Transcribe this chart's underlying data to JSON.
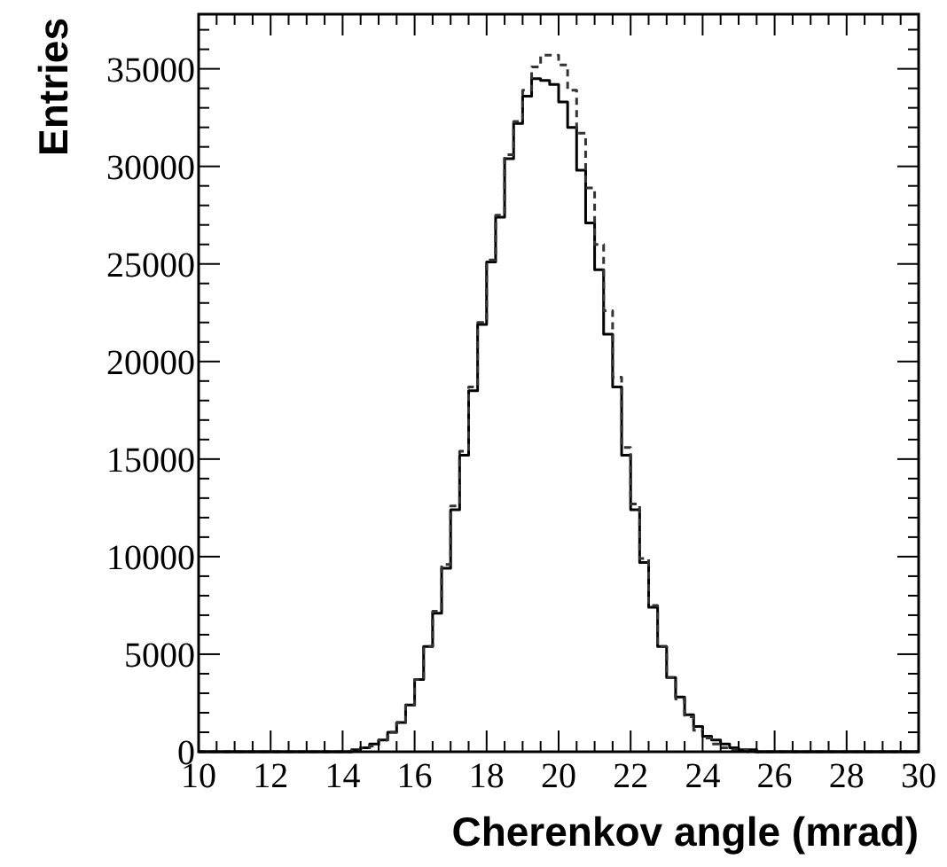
{
  "chart_data": {
    "type": "histogram",
    "xlabel": "Cherenkov angle (mrad)",
    "ylabel": "Entries",
    "bins": [
      10,
      10.25,
      10.5,
      10.75,
      11,
      11.25,
      11.5,
      11.75,
      12,
      12.25,
      12.5,
      12.75,
      13,
      13.25,
      13.5,
      13.75,
      14,
      14.25,
      14.5,
      14.75,
      15,
      15.25,
      15.5,
      15.75,
      16,
      16.25,
      16.5,
      16.75,
      17,
      17.25,
      17.5,
      17.75,
      18,
      18.25,
      18.5,
      18.75,
      19,
      19.25,
      19.5,
      19.75,
      20,
      20.25,
      20.5,
      20.75,
      21,
      21.25,
      21.5,
      21.75,
      22,
      22.25,
      22.5,
      22.75,
      23,
      23.25,
      23.5,
      23.75,
      24,
      24.25,
      24.5,
      24.75,
      25,
      25.25,
      25.5,
      25.75,
      26,
      26.25,
      26.5,
      26.75,
      27,
      27.25,
      27.5,
      27.75,
      28,
      28.25,
      28.5,
      28.75,
      29,
      29.25,
      29.5,
      29.75,
      30
    ],
    "series": [
      {
        "color": "#000000",
        "line_style": "solid",
        "values": [
          0,
          0,
          0,
          0,
          0,
          0,
          0,
          0,
          0,
          0,
          0,
          0,
          0,
          0,
          0,
          0,
          0,
          100,
          200,
          400,
          600,
          1000,
          1500,
          2400,
          3700,
          5400,
          7100,
          9400,
          12400,
          15200,
          18500,
          21900,
          25100,
          27400,
          30400,
          32200,
          33600,
          34500,
          34400,
          34200,
          33300,
          32000,
          29800,
          27100,
          24700,
          21400,
          18700,
          15200,
          12400,
          9700,
          7400,
          5400,
          3800,
          2800,
          1900,
          1300,
          800,
          600,
          400,
          200,
          100,
          100,
          0,
          0,
          0,
          0,
          0,
          0,
          0,
          0,
          0,
          0,
          0,
          0,
          0,
          0,
          0,
          0,
          0,
          0
        ]
      },
      {
        "color": "#333333",
        "line_style": "dashed",
        "values": [
          0,
          0,
          0,
          0,
          0,
          0,
          0,
          0,
          0,
          0,
          0,
          0,
          0,
          0,
          0,
          0,
          0,
          100,
          200,
          300,
          600,
          1000,
          1500,
          2400,
          3700,
          5400,
          7200,
          9600,
          12600,
          15400,
          18700,
          22000,
          25200,
          27500,
          30600,
          32300,
          33900,
          35100,
          35700,
          35700,
          35200,
          33900,
          31700,
          28900,
          26000,
          22600,
          19200,
          15600,
          12700,
          9900,
          7500,
          5400,
          3800,
          2700,
          1800,
          1100,
          700,
          400,
          200,
          100,
          100,
          0,
          0,
          0,
          0,
          0,
          0,
          0,
          0,
          0,
          0,
          0,
          0,
          0,
          0,
          0,
          0,
          0,
          0,
          0
        ]
      }
    ],
    "xlim": [
      10,
      30
    ],
    "xticks": [
      10,
      {
        "value": 10.5,
        "label": null
      },
      {
        "value": 11,
        "label": null
      },
      {
        "value": 11.5,
        "label": null
      },
      12,
      {
        "value": 12.5,
        "label": null
      },
      {
        "value": 13,
        "label": null
      },
      {
        "value": 13.5,
        "label": null
      },
      14,
      {
        "value": 14.5,
        "label": null
      },
      {
        "value": 15,
        "label": null
      },
      {
        "value": 15.5,
        "label": null
      },
      16,
      {
        "value": 16.5,
        "label": null
      },
      {
        "value": 17,
        "label": null
      },
      {
        "value": 17.5,
        "label": null
      },
      18,
      {
        "value": 18.5,
        "label": null
      },
      {
        "value": 19,
        "label": null
      },
      {
        "value": 19.5,
        "label": null
      },
      20,
      {
        "value": 20.5,
        "label": null
      },
      {
        "value": 21,
        "label": null
      },
      {
        "value": 21.5,
        "label": null
      },
      22,
      {
        "value": 22.5,
        "label": null
      },
      {
        "value": 23,
        "label": null
      },
      {
        "value": 23.5,
        "label": null
      },
      24,
      {
        "value": 24.5,
        "label": null
      },
      {
        "value": 25,
        "label": null
      },
      {
        "value": 25.5,
        "label": null
      },
      26,
      {
        "value": 26.5,
        "label": null
      },
      {
        "value": 27,
        "label": null
      },
      {
        "value": 27.5,
        "label": null
      },
      28,
      {
        "value": 28.5,
        "label": null
      },
      {
        "value": 29,
        "label": null
      },
      {
        "value": 29.5,
        "label": null
      },
      30
    ],
    "ylim": [
      0,
      37800
    ],
    "yticks": [
      0,
      {
        "value": 1000,
        "label": null
      },
      {
        "value": 2000,
        "label": null
      },
      {
        "value": 3000,
        "label": null
      },
      {
        "value": 4000,
        "label": null
      },
      5000,
      {
        "value": 6000,
        "label": null
      },
      {
        "value": 7000,
        "label": null
      },
      {
        "value": 8000,
        "label": null
      },
      {
        "value": 9000,
        "label": null
      },
      10000,
      {
        "value": 11000,
        "label": null
      },
      {
        "value": 12000,
        "label": null
      },
      {
        "value": 13000,
        "label": null
      },
      {
        "value": 14000,
        "label": null
      },
      15000,
      {
        "value": 16000,
        "label": null
      },
      {
        "value": 17000,
        "label": null
      },
      {
        "value": 18000,
        "label": null
      },
      {
        "value": 19000,
        "label": null
      },
      20000,
      {
        "value": 21000,
        "label": null
      },
      {
        "value": 22000,
        "label": null
      },
      {
        "value": 23000,
        "label": null
      },
      {
        "value": 24000,
        "label": null
      },
      25000,
      {
        "value": 26000,
        "label": null
      },
      {
        "value": 27000,
        "label": null
      },
      {
        "value": 28000,
        "label": null
      },
      {
        "value": 29000,
        "label": null
      },
      30000,
      {
        "value": 31000,
        "label": null
      },
      {
        "value": 32000,
        "label": null
      },
      {
        "value": 33000,
        "label": null
      },
      {
        "value": 34000,
        "label": null
      },
      35000,
      {
        "value": 36000,
        "label": null
      },
      {
        "value": 37000,
        "label": null
      }
    ]
  }
}
